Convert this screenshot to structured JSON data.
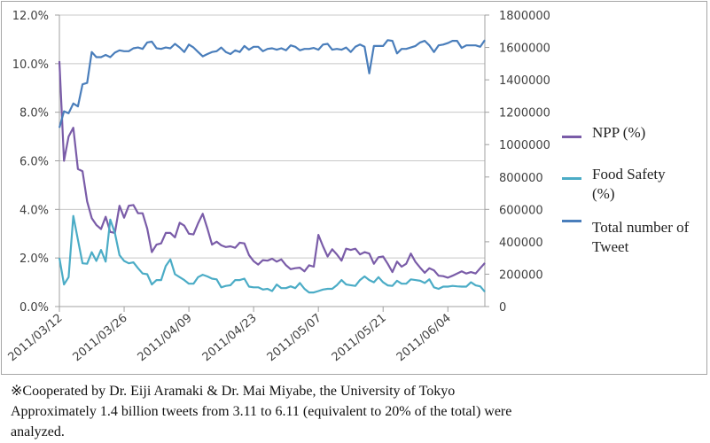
{
  "chart_data": {
    "type": "line",
    "title": "",
    "xlabel": "",
    "ylabel": "",
    "x_start": "2011/03/12",
    "x_end": "2011/06/12",
    "x_tick_labels": [
      "2011/03/12",
      "2011/03/26",
      "2011/04/09",
      "2011/04/23",
      "2011/05/07",
      "2011/05/21",
      "2011/06/04"
    ],
    "y_left": {
      "range": [
        0,
        12
      ],
      "unit": "%",
      "tick_labels": [
        "0.0%",
        "2.0%",
        "4.0%",
        "6.0%",
        "8.0%",
        "10.0%",
        "12.0%"
      ]
    },
    "y_right": {
      "range": [
        0,
        1800000
      ],
      "tick_labels": [
        "0",
        "200000",
        "400000",
        "600000",
        "800000",
        "1000000",
        "1200000",
        "1400000",
        "1600000",
        "1800000"
      ]
    },
    "grid": "horizontal",
    "legend_placement": "right",
    "series": [
      {
        "name": "NPP (%)",
        "axis": "left",
        "color": "#7a5ca8",
        "values": [
          10.1,
          6.0,
          7.0,
          7.36,
          5.66,
          5.57,
          4.33,
          3.64,
          3.36,
          3.19,
          3.7,
          3.07,
          3.03,
          4.15,
          3.66,
          4.15,
          4.18,
          3.84,
          3.84,
          3.21,
          2.24,
          2.55,
          2.6,
          3.03,
          3.03,
          2.85,
          3.45,
          3.33,
          3.0,
          2.97,
          3.43,
          3.82,
          3.21,
          2.55,
          2.67,
          2.52,
          2.45,
          2.48,
          2.42,
          2.63,
          2.6,
          2.12,
          1.87,
          1.73,
          1.91,
          1.89,
          1.97,
          1.85,
          1.94,
          1.7,
          1.54,
          1.58,
          1.6,
          1.45,
          1.7,
          1.64,
          2.95,
          2.48,
          2.06,
          2.36,
          2.15,
          1.89,
          2.38,
          2.33,
          2.38,
          2.15,
          2.24,
          2.18,
          1.76,
          2.03,
          2.06,
          1.76,
          1.42,
          1.85,
          1.64,
          1.76,
          2.18,
          1.84,
          1.6,
          1.39,
          1.58,
          1.49,
          1.27,
          1.25,
          1.19,
          1.27,
          1.36,
          1.45,
          1.36,
          1.42,
          1.36,
          1.58,
          1.79
        ]
      },
      {
        "name": "Food Safety (%)",
        "axis": "left",
        "color": "#4bacc6",
        "values": [
          2.0,
          0.91,
          1.21,
          3.73,
          2.75,
          1.78,
          1.76,
          2.24,
          1.88,
          2.33,
          1.85,
          3.58,
          3.03,
          2.12,
          1.88,
          1.78,
          1.82,
          1.58,
          1.36,
          1.33,
          0.91,
          1.09,
          1.09,
          1.67,
          1.94,
          1.33,
          1.21,
          1.09,
          0.94,
          0.94,
          1.21,
          1.31,
          1.24,
          1.15,
          1.12,
          0.79,
          0.85,
          0.88,
          1.09,
          1.09,
          1.15,
          0.82,
          0.79,
          0.79,
          0.7,
          0.73,
          0.64,
          0.91,
          0.76,
          0.76,
          0.83,
          0.76,
          0.97,
          0.73,
          0.58,
          0.58,
          0.64,
          0.7,
          0.73,
          0.73,
          0.88,
          1.09,
          0.91,
          0.88,
          0.85,
          1.09,
          1.24,
          1.09,
          1.0,
          1.21,
          1.0,
          0.87,
          0.85,
          1.06,
          0.94,
          0.94,
          1.12,
          1.09,
          1.06,
          0.97,
          1.12,
          0.79,
          0.73,
          0.82,
          0.82,
          0.85,
          0.83,
          0.82,
          0.82,
          1.0,
          0.87,
          0.83,
          0.61
        ]
      },
      {
        "name": "Total number of Tweet",
        "axis": "right",
        "color": "#4a7ebb",
        "values": [
          1104000,
          1206000,
          1194000,
          1254000,
          1236000,
          1372000,
          1381000,
          1572000,
          1540000,
          1540000,
          1554000,
          1540000,
          1568000,
          1582000,
          1577000,
          1577000,
          1595000,
          1600000,
          1591000,
          1631000,
          1636000,
          1595000,
          1591000,
          1600000,
          1595000,
          1622000,
          1600000,
          1572000,
          1618000,
          1600000,
          1572000,
          1545000,
          1559000,
          1572000,
          1577000,
          1600000,
          1572000,
          1559000,
          1582000,
          1572000,
          1609000,
          1586000,
          1604000,
          1604000,
          1577000,
          1591000,
          1595000,
          1586000,
          1595000,
          1582000,
          1613000,
          1604000,
          1582000,
          1591000,
          1591000,
          1597000,
          1586000,
          1618000,
          1622000,
          1586000,
          1591000,
          1586000,
          1600000,
          1572000,
          1604000,
          1618000,
          1604000,
          1440000,
          1609000,
          1609000,
          1609000,
          1645000,
          1641000,
          1563000,
          1591000,
          1591000,
          1600000,
          1609000,
          1631000,
          1641000,
          1613000,
          1572000,
          1613000,
          1618000,
          1627000,
          1641000,
          1641000,
          1597000,
          1613000,
          1613000,
          1613000,
          1604000,
          1645000
        ]
      }
    ]
  },
  "legend": {
    "npp": "NPP (%)",
    "food_line1": "Food Safety",
    "food_line2": "(%)",
    "total_line1": "Total number of",
    "total_line2": "Tweet"
  },
  "footnote": {
    "line1": "※Cooperated by Dr. Eiji Aramaki & Dr. Mai Miyabe, the University of Tokyo",
    "line2": "Approximately  1.4 billion tweets from 3.11 to 6.11 (equivalent to 20% of the total) were",
    "line3": "analyzed."
  }
}
